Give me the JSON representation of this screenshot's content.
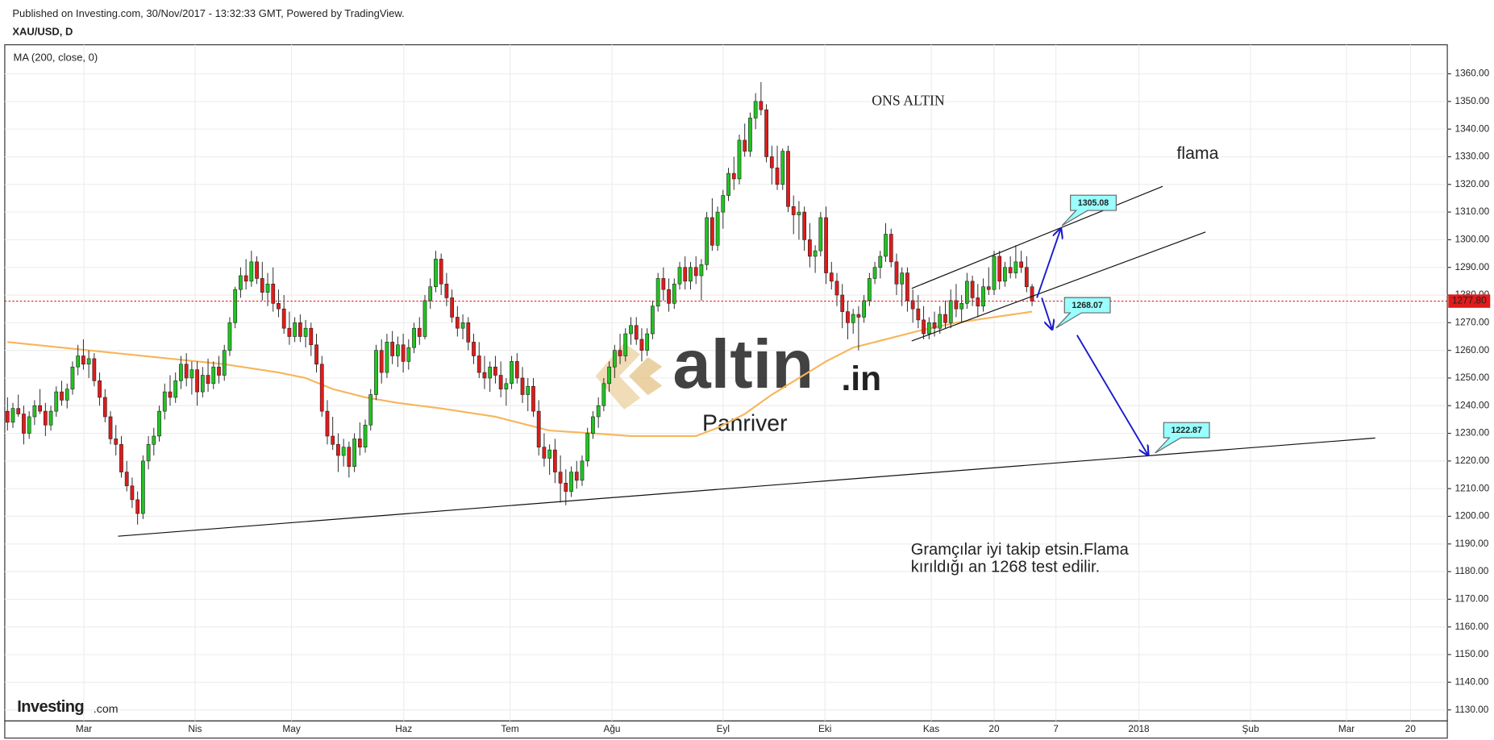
{
  "header": {
    "published": "Published on Investing.com, 30/Nov/2017 - 13:32:33 GMT, Powered by TradingView.",
    "symbol": "XAU/USD, D"
  },
  "logo": {
    "main": "Investing",
    "suffix": ".com"
  },
  "watermark": {
    "brand": "altin",
    "suffix": ".in",
    "sub": "Panriver"
  },
  "chart_data": {
    "type": "candlestick",
    "up_color": "#22c322",
    "down_color": "#e01b1b",
    "candles": [
      [
        1238,
        1243,
        1231,
        1234
      ],
      [
        1234,
        1241,
        1232,
        1239
      ],
      [
        1239,
        1244,
        1236,
        1237
      ],
      [
        1237,
        1240,
        1226,
        1230
      ],
      [
        1230,
        1238,
        1228,
        1236
      ],
      [
        1236,
        1242,
        1233,
        1240
      ],
      [
        1240,
        1246,
        1237,
        1238
      ],
      [
        1238,
        1241,
        1229,
        1233
      ],
      [
        1233,
        1240,
        1231,
        1238
      ],
      [
        1238,
        1247,
        1236,
        1245
      ],
      [
        1245,
        1249,
        1240,
        1242
      ],
      [
        1242,
        1248,
        1239,
        1246
      ],
      [
        1246,
        1256,
        1244,
        1254
      ],
      [
        1254,
        1262,
        1251,
        1258
      ],
      [
        1258,
        1264,
        1253,
        1255
      ],
      [
        1255,
        1260,
        1250,
        1257
      ],
      [
        1257,
        1259,
        1247,
        1249
      ],
      [
        1249,
        1252,
        1240,
        1243
      ],
      [
        1243,
        1246,
        1234,
        1236
      ],
      [
        1236,
        1238,
        1226,
        1228
      ],
      [
        1228,
        1233,
        1222,
        1226
      ],
      [
        1226,
        1229,
        1214,
        1216
      ],
      [
        1216,
        1220,
        1209,
        1211
      ],
      [
        1211,
        1214,
        1203,
        1206
      ],
      [
        1206,
        1209,
        1197,
        1201
      ],
      [
        1201,
        1222,
        1199,
        1220
      ],
      [
        1220,
        1229,
        1217,
        1226
      ],
      [
        1226,
        1232,
        1222,
        1229
      ],
      [
        1229,
        1240,
        1227,
        1238
      ],
      [
        1238,
        1248,
        1235,
        1245
      ],
      [
        1245,
        1251,
        1240,
        1243
      ],
      [
        1243,
        1252,
        1241,
        1249
      ],
      [
        1249,
        1258,
        1246,
        1255
      ],
      [
        1255,
        1259,
        1247,
        1250
      ],
      [
        1250,
        1256,
        1244,
        1253
      ],
      [
        1253,
        1256,
        1240,
        1245
      ],
      [
        1245,
        1254,
        1243,
        1251
      ],
      [
        1251,
        1257,
        1245,
        1248
      ],
      [
        1248,
        1256,
        1246,
        1254
      ],
      [
        1254,
        1258,
        1248,
        1251
      ],
      [
        1251,
        1262,
        1249,
        1260
      ],
      [
        1260,
        1272,
        1258,
        1270
      ],
      [
        1270,
        1283,
        1268,
        1282
      ],
      [
        1282,
        1290,
        1279,
        1287
      ],
      [
        1287,
        1293,
        1282,
        1285
      ],
      [
        1285,
        1296,
        1283,
        1292
      ],
      [
        1292,
        1294,
        1284,
        1286
      ],
      [
        1286,
        1292,
        1278,
        1281
      ],
      [
        1281,
        1288,
        1276,
        1284
      ],
      [
        1284,
        1290,
        1274,
        1277
      ],
      [
        1277,
        1282,
        1272,
        1275
      ],
      [
        1275,
        1280,
        1266,
        1268
      ],
      [
        1268,
        1274,
        1262,
        1265
      ],
      [
        1265,
        1272,
        1263,
        1270
      ],
      [
        1270,
        1273,
        1263,
        1265
      ],
      [
        1265,
        1271,
        1261,
        1268
      ],
      [
        1268,
        1270,
        1258,
        1262
      ],
      [
        1262,
        1266,
        1252,
        1255
      ],
      [
        1255,
        1258,
        1236,
        1238
      ],
      [
        1238,
        1242,
        1226,
        1229
      ],
      [
        1229,
        1236,
        1224,
        1226
      ],
      [
        1226,
        1230,
        1216,
        1222
      ],
      [
        1222,
        1228,
        1218,
        1225
      ],
      [
        1225,
        1227,
        1214,
        1218
      ],
      [
        1218,
        1230,
        1216,
        1228
      ],
      [
        1228,
        1234,
        1222,
        1225
      ],
      [
        1225,
        1235,
        1223,
        1233
      ],
      [
        1233,
        1246,
        1231,
        1244
      ],
      [
        1244,
        1262,
        1242,
        1260
      ],
      [
        1260,
        1264,
        1248,
        1252
      ],
      [
        1252,
        1266,
        1250,
        1263
      ],
      [
        1263,
        1267,
        1255,
        1258
      ],
      [
        1258,
        1265,
        1254,
        1262
      ],
      [
        1262,
        1266,
        1252,
        1256
      ],
      [
        1256,
        1264,
        1253,
        1261
      ],
      [
        1261,
        1270,
        1259,
        1268
      ],
      [
        1268,
        1272,
        1262,
        1265
      ],
      [
        1265,
        1280,
        1264,
        1278
      ],
      [
        1278,
        1286,
        1275,
        1283
      ],
      [
        1283,
        1296,
        1281,
        1293
      ],
      [
        1293,
        1295,
        1280,
        1284
      ],
      [
        1284,
        1288,
        1276,
        1279
      ],
      [
        1279,
        1282,
        1270,
        1272
      ],
      [
        1272,
        1276,
        1265,
        1268
      ],
      [
        1268,
        1273,
        1264,
        1270
      ],
      [
        1270,
        1272,
        1260,
        1263
      ],
      [
        1263,
        1266,
        1255,
        1258
      ],
      [
        1258,
        1263,
        1250,
        1252
      ],
      [
        1252,
        1258,
        1246,
        1250
      ],
      [
        1250,
        1256,
        1245,
        1254
      ],
      [
        1254,
        1258,
        1248,
        1251
      ],
      [
        1251,
        1256,
        1243,
        1246
      ],
      [
        1246,
        1250,
        1240,
        1248
      ],
      [
        1248,
        1258,
        1246,
        1256
      ],
      [
        1256,
        1259,
        1248,
        1250
      ],
      [
        1250,
        1254,
        1241,
        1244
      ],
      [
        1244,
        1250,
        1238,
        1247
      ],
      [
        1247,
        1250,
        1236,
        1238
      ],
      [
        1238,
        1242,
        1222,
        1225
      ],
      [
        1225,
        1230,
        1218,
        1221
      ],
      [
        1221,
        1226,
        1215,
        1224
      ],
      [
        1224,
        1228,
        1212,
        1216
      ],
      [
        1216,
        1222,
        1205,
        1212
      ],
      [
        1212,
        1217,
        1204,
        1209
      ],
      [
        1209,
        1218,
        1207,
        1216
      ],
      [
        1216,
        1220,
        1210,
        1213
      ],
      [
        1213,
        1222,
        1211,
        1220
      ],
      [
        1220,
        1232,
        1218,
        1230
      ],
      [
        1230,
        1238,
        1228,
        1236
      ],
      [
        1236,
        1243,
        1232,
        1240
      ],
      [
        1240,
        1250,
        1238,
        1248
      ],
      [
        1248,
        1256,
        1245,
        1254
      ],
      [
        1254,
        1262,
        1250,
        1260
      ],
      [
        1260,
        1266,
        1255,
        1258
      ],
      [
        1258,
        1268,
        1256,
        1266
      ],
      [
        1266,
        1272,
        1262,
        1269
      ],
      [
        1269,
        1272,
        1262,
        1264
      ],
      [
        1264,
        1268,
        1256,
        1260
      ],
      [
        1260,
        1268,
        1258,
        1266
      ],
      [
        1266,
        1278,
        1264,
        1276
      ],
      [
        1276,
        1288,
        1274,
        1286
      ],
      [
        1286,
        1290,
        1278,
        1282
      ],
      [
        1282,
        1286,
        1274,
        1277
      ],
      [
        1277,
        1286,
        1275,
        1284
      ],
      [
        1284,
        1292,
        1282,
        1290
      ],
      [
        1290,
        1294,
        1282,
        1285
      ],
      [
        1285,
        1292,
        1282,
        1290
      ],
      [
        1290,
        1294,
        1284,
        1287
      ],
      [
        1287,
        1293,
        1278,
        1291
      ],
      [
        1291,
        1310,
        1289,
        1308
      ],
      [
        1308,
        1315,
        1296,
        1298
      ],
      [
        1298,
        1312,
        1296,
        1310
      ],
      [
        1310,
        1318,
        1304,
        1316
      ],
      [
        1316,
        1326,
        1314,
        1324
      ],
      [
        1324,
        1330,
        1318,
        1322
      ],
      [
        1322,
        1338,
        1320,
        1336
      ],
      [
        1336,
        1342,
        1330,
        1332
      ],
      [
        1332,
        1346,
        1330,
        1344
      ],
      [
        1344,
        1353,
        1340,
        1350
      ],
      [
        1350,
        1357,
        1345,
        1347
      ],
      [
        1347,
        1349,
        1328,
        1330
      ],
      [
        1330,
        1334,
        1320,
        1326
      ],
      [
        1326,
        1334,
        1318,
        1320
      ],
      [
        1320,
        1333,
        1318,
        1332
      ],
      [
        1332,
        1334,
        1310,
        1312
      ],
      [
        1312,
        1316,
        1302,
        1309
      ],
      [
        1309,
        1314,
        1300,
        1310
      ],
      [
        1310,
        1312,
        1296,
        1300
      ],
      [
        1300,
        1306,
        1290,
        1294
      ],
      [
        1294,
        1298,
        1288,
        1296
      ],
      [
        1296,
        1310,
        1294,
        1308
      ],
      [
        1308,
        1312,
        1284,
        1288
      ],
      [
        1288,
        1292,
        1282,
        1285
      ],
      [
        1285,
        1288,
        1276,
        1280
      ],
      [
        1280,
        1284,
        1268,
        1274
      ],
      [
        1274,
        1278,
        1264,
        1270
      ],
      [
        1270,
        1275,
        1266,
        1273
      ],
      [
        1273,
        1276,
        1260,
        1272
      ],
      [
        1272,
        1280,
        1270,
        1278
      ],
      [
        1278,
        1288,
        1276,
        1286
      ],
      [
        1286,
        1292,
        1284,
        1290
      ],
      [
        1290,
        1296,
        1286,
        1294
      ],
      [
        1294,
        1306,
        1292,
        1302
      ],
      [
        1302,
        1304,
        1290,
        1292
      ],
      [
        1292,
        1295,
        1280,
        1284
      ],
      [
        1284,
        1290,
        1276,
        1288
      ],
      [
        1288,
        1290,
        1274,
        1278
      ],
      [
        1278,
        1282,
        1270,
        1275
      ],
      [
        1275,
        1280,
        1268,
        1271
      ],
      [
        1271,
        1276,
        1264,
        1266
      ],
      [
        1266,
        1272,
        1264,
        1270
      ],
      [
        1270,
        1274,
        1265,
        1268
      ],
      [
        1268,
        1276,
        1266,
        1273
      ],
      [
        1273,
        1278,
        1268,
        1270
      ],
      [
        1270,
        1282,
        1268,
        1278
      ],
      [
        1278,
        1284,
        1272,
        1275
      ],
      [
        1275,
        1280,
        1270,
        1277
      ],
      [
        1277,
        1288,
        1275,
        1285
      ],
      [
        1285,
        1287,
        1276,
        1279
      ],
      [
        1279,
        1284,
        1272,
        1276
      ],
      [
        1276,
        1286,
        1274,
        1283
      ],
      [
        1283,
        1290,
        1280,
        1282
      ],
      [
        1282,
        1296,
        1280,
        1294
      ],
      [
        1294,
        1296,
        1282,
        1285
      ],
      [
        1285,
        1292,
        1283,
        1290
      ],
      [
        1290,
        1294,
        1286,
        1288
      ],
      [
        1288,
        1298,
        1286,
        1292
      ],
      [
        1292,
        1296,
        1288,
        1290
      ],
      [
        1290,
        1294,
        1281,
        1283
      ],
      [
        1283,
        1284,
        1276,
        1277.8
      ]
    ],
    "ma": {
      "name": "MA (200, close, 0)",
      "color": "#f7b55a",
      "x": [
        0,
        10,
        20,
        30,
        40,
        50,
        55,
        60,
        66,
        72,
        80,
        90,
        100,
        108,
        115,
        121,
        127,
        131,
        136,
        141,
        146,
        151,
        156,
        162,
        168,
        175,
        182,
        189
      ],
      "values": [
        1263,
        1261,
        1259,
        1257,
        1255,
        1252,
        1250,
        1246,
        1243,
        1241,
        1239,
        1236,
        1231,
        1230,
        1229,
        1229,
        1229,
        1232,
        1237,
        1244,
        1250,
        1256,
        1261,
        1264,
        1267,
        1270,
        1272,
        1274
      ]
    },
    "xlim": [
      -0.5,
      265.6
    ],
    "xticks": [
      {
        "value": 14.1,
        "label": "Mar"
      },
      {
        "value": 34.6,
        "label": "Nis"
      },
      {
        "value": 52.4,
        "label": "May"
      },
      {
        "value": 73.1,
        "label": "Haz"
      },
      {
        "value": 92.7,
        "label": "Tem"
      },
      {
        "value": 111.5,
        "label": "Ağu"
      },
      {
        "value": 132,
        "label": "Eyl"
      },
      {
        "value": 150.8,
        "label": "Eki"
      },
      {
        "value": 170.4,
        "label": "Kas"
      },
      {
        "value": 182,
        "label": "20"
      },
      {
        "value": 193.4,
        "label": "7"
      },
      {
        "value": 208.7,
        "label": "2018"
      },
      {
        "value": 229.3,
        "label": "Şub"
      },
      {
        "value": 247,
        "label": "Mar"
      },
      {
        "value": 258.8,
        "label": "20"
      }
    ],
    "ylim": [
      1126,
      1370.5
    ],
    "yticks": [
      {
        "value": 1130,
        "label": "1130.00"
      },
      {
        "value": 1140,
        "label": "1140.00"
      },
      {
        "value": 1150,
        "label": "1150.00"
      },
      {
        "value": 1160,
        "label": "1160.00"
      },
      {
        "value": 1170,
        "label": "1170.00"
      },
      {
        "value": 1180,
        "label": "1180.00"
      },
      {
        "value": 1190,
        "label": "1190.00"
      },
      {
        "value": 1200,
        "label": "1200.00"
      },
      {
        "value": 1210,
        "label": "1210.00"
      },
      {
        "value": 1220,
        "label": "1220.00"
      },
      {
        "value": 1230,
        "label": "1230.00"
      },
      {
        "value": 1240,
        "label": "1240.00"
      },
      {
        "value": 1250,
        "label": "1250.00"
      },
      {
        "value": 1260,
        "label": "1260.00"
      },
      {
        "value": 1270,
        "label": "1270.00"
      },
      {
        "value": 1280,
        "label": "1280.00"
      },
      {
        "value": 1290,
        "label": "1290.00"
      },
      {
        "value": 1300,
        "label": "1300.00"
      },
      {
        "value": 1310,
        "label": "1310.00"
      },
      {
        "value": 1320,
        "label": "1320.00"
      },
      {
        "value": 1330,
        "label": "1330.00"
      },
      {
        "value": 1340,
        "label": "1340.00"
      },
      {
        "value": 1350,
        "label": "1350.00"
      },
      {
        "value": 1360,
        "label": "1360.00"
      }
    ],
    "grid": true,
    "last_price": {
      "value": 1277.8,
      "label": "1277.80",
      "color": "#e01b1b"
    },
    "trendlines": [
      {
        "x": [
          20.4,
          252.3
        ],
        "y": [
          1192.8,
          1228.3
        ],
        "color": "#111111"
      },
      {
        "x": [
          166.8,
          213.1
        ],
        "y": [
          1282.4,
          1319.3
        ],
        "color": "#111111"
      },
      {
        "x": [
          166.8,
          221.0
        ],
        "y": [
          1263.4,
          1302.8
        ],
        "color": "#111111"
      }
    ],
    "arrows": [
      {
        "x": [
          189.9,
          194.3
        ],
        "y": [
          1279,
          1304
        ],
        "color": "#1a1acc"
      },
      {
        "x": [
          190.8,
          192.7
        ],
        "y": [
          1279,
          1267.6
        ],
        "color": "#1a1acc"
      },
      {
        "x": [
          197.3,
          210.4
        ],
        "y": [
          1265.5,
          1222.1
        ],
        "color": "#1a1acc"
      }
    ],
    "callouts": [
      {
        "x": 194.5,
        "value": 1305.08
      },
      {
        "x": 193.4,
        "value": 1268.07
      },
      {
        "x": 211.7,
        "value": 1222.87
      }
    ],
    "annotations": [
      "ONS ALTIN",
      "flama",
      "Gramçılar iyi takip etsin.Flama",
      "kırıldığı an 1268 test edilir."
    ]
  }
}
